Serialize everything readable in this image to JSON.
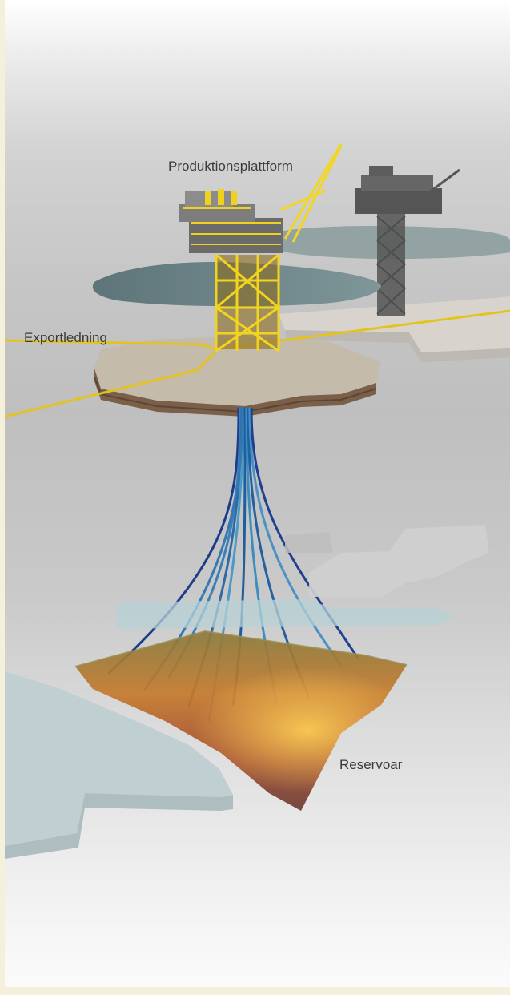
{
  "labels": {
    "platform": "Produktionsplattform",
    "export_line": "Exportledning",
    "reservoir": "Reservoar"
  },
  "colors": {
    "sea": "#6f8a8f",
    "seabed_top": "#cbc2b4",
    "seabed_side": "#7a5f4a",
    "steel": "#f2d51f",
    "pipeline": "#e2c21e",
    "wells": "#3b7fb3",
    "reservoir": "#b46a2e",
    "background_frame": "#f4f0dc"
  }
}
